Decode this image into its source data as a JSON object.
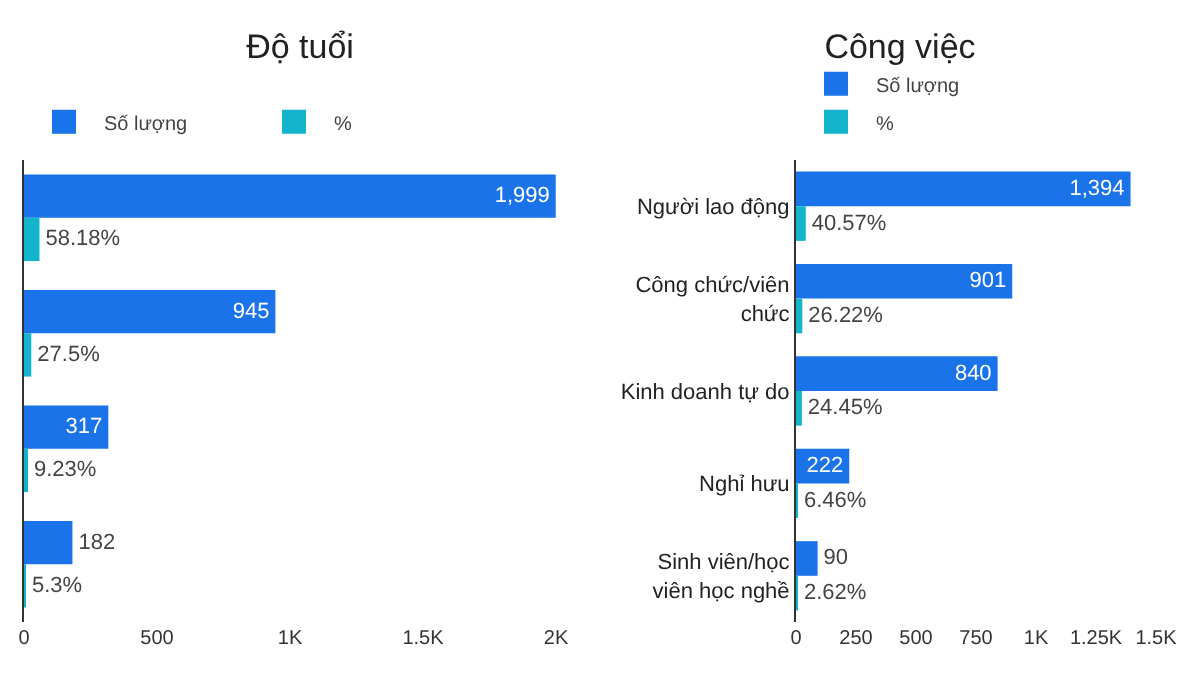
{
  "chart_data": [
    {
      "type": "bar",
      "orientation": "horizontal",
      "title": "Độ tuổi",
      "categories": [
        null,
        null,
        null,
        null
      ],
      "series": [
        {
          "name": "Số lượng",
          "color": "#1a73e8",
          "values": [
            1999,
            945,
            317,
            182
          ],
          "value_labels": [
            "1,999",
            "945",
            "317",
            "182"
          ]
        },
        {
          "name": "%",
          "color": "#12b5cb",
          "values": [
            58.18,
            27.5,
            9.23,
            5.3
          ],
          "value_labels": [
            "58.18%",
            "27.5%",
            "9.23%",
            "5.3%"
          ]
        }
      ],
      "xlim": [
        0,
        2000
      ],
      "xticks": [
        0,
        500,
        {
          "value": 1000,
          "label": "1K"
        },
        {
          "value": 1500,
          "label": "1.5K"
        },
        {
          "value": 2000,
          "label": "2K"
        }
      ],
      "grid": false,
      "legend": "top left"
    },
    {
      "type": "bar",
      "orientation": "horizontal",
      "title": "Công việc",
      "categories": [
        "Người lao động",
        "Công chức/viên chức",
        "Kinh doanh tự do",
        "Nghỉ hưu",
        "Sinh viên/học viên học nghề"
      ],
      "series": [
        {
          "name": "Số lượng",
          "color": "#1a73e8",
          "values": [
            1394,
            901,
            840,
            222,
            90
          ],
          "value_labels": [
            "1,394",
            "901",
            "840",
            "222",
            "90"
          ]
        },
        {
          "name": "%",
          "color": "#12b5cb",
          "values": [
            40.57,
            26.22,
            24.45,
            6.46,
            2.62
          ],
          "value_labels": [
            "40.57%",
            "26.22%",
            "24.45%",
            "6.46%",
            "2.62%"
          ]
        }
      ],
      "xlim": [
        0,
        1500
      ],
      "xticks": [
        0,
        250,
        500,
        750,
        {
          "value": 1000,
          "label": "1K"
        },
        {
          "value": 1250,
          "label": "1.25K"
        },
        {
          "value": 1500,
          "label": "1.5K"
        }
      ],
      "grid": false,
      "legend": "top left"
    }
  ]
}
